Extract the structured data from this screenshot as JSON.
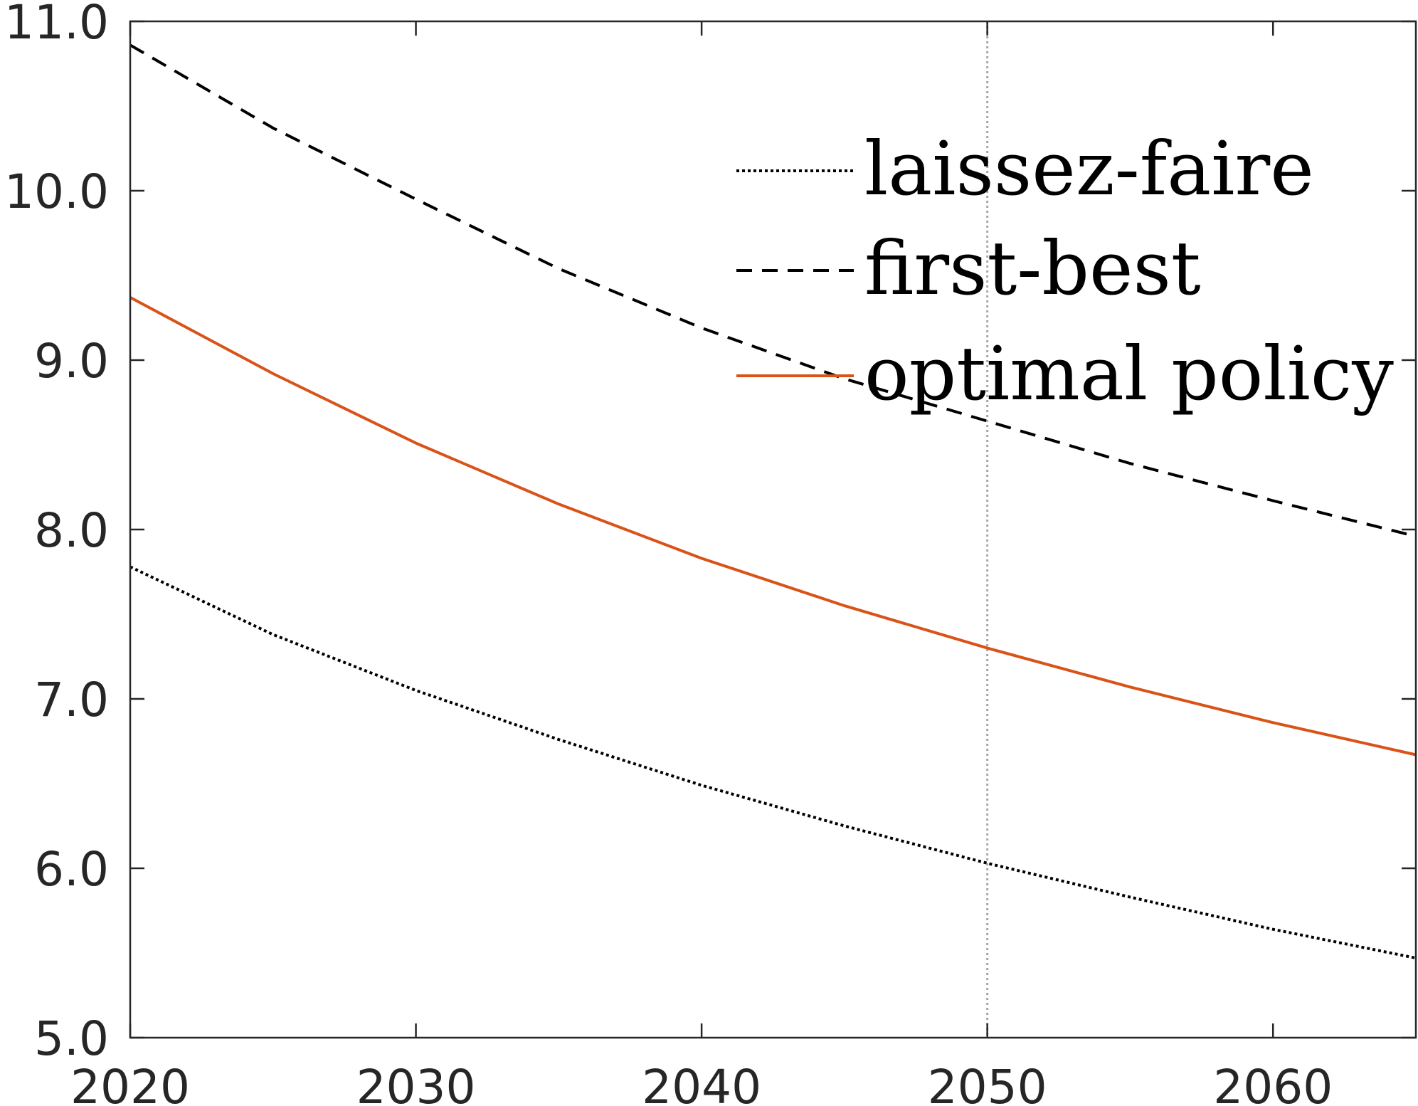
{
  "chart_data": {
    "type": "line",
    "title": "",
    "xlabel": "",
    "ylabel": "",
    "xlim": [
      2020,
      2065
    ],
    "ylim": [
      5.0,
      11.0
    ],
    "x_ticks": [
      2020,
      2030,
      2040,
      2050,
      2060
    ],
    "x_tick_labels": [
      "2020",
      "2030",
      "2040",
      "2050",
      "2060"
    ],
    "y_ticks": [
      5,
      6,
      7,
      8,
      9,
      10,
      11
    ],
    "y_tick_labels": [
      "5.0",
      "6.0",
      "7.0",
      "8.0",
      "9.0",
      "10.0",
      "11.0"
    ],
    "grid": false,
    "reference_line": {
      "x": 2050,
      "style": "dotted",
      "color": "#a6a6a6"
    },
    "legend_position": "top-right",
    "x": [
      2020,
      2025,
      2030,
      2035,
      2040,
      2045,
      2050,
      2055,
      2060,
      2065
    ],
    "series": [
      {
        "name": "laissez-faire",
        "style": "dotted",
        "color": "#000000",
        "values": [
          7.78,
          7.38,
          7.05,
          6.76,
          6.49,
          6.25,
          6.03,
          5.83,
          5.64,
          5.47
        ]
      },
      {
        "name": "first-best",
        "style": "dashed",
        "color": "#000000",
        "values": [
          10.86,
          10.37,
          9.95,
          9.54,
          9.19,
          8.89,
          8.64,
          8.39,
          8.17,
          7.96
        ]
      },
      {
        "name": "optimal policy",
        "style": "solid",
        "color": "#d95319",
        "values": [
          9.37,
          8.92,
          8.51,
          8.15,
          7.83,
          7.55,
          7.3,
          7.07,
          6.86,
          6.67
        ]
      }
    ]
  }
}
